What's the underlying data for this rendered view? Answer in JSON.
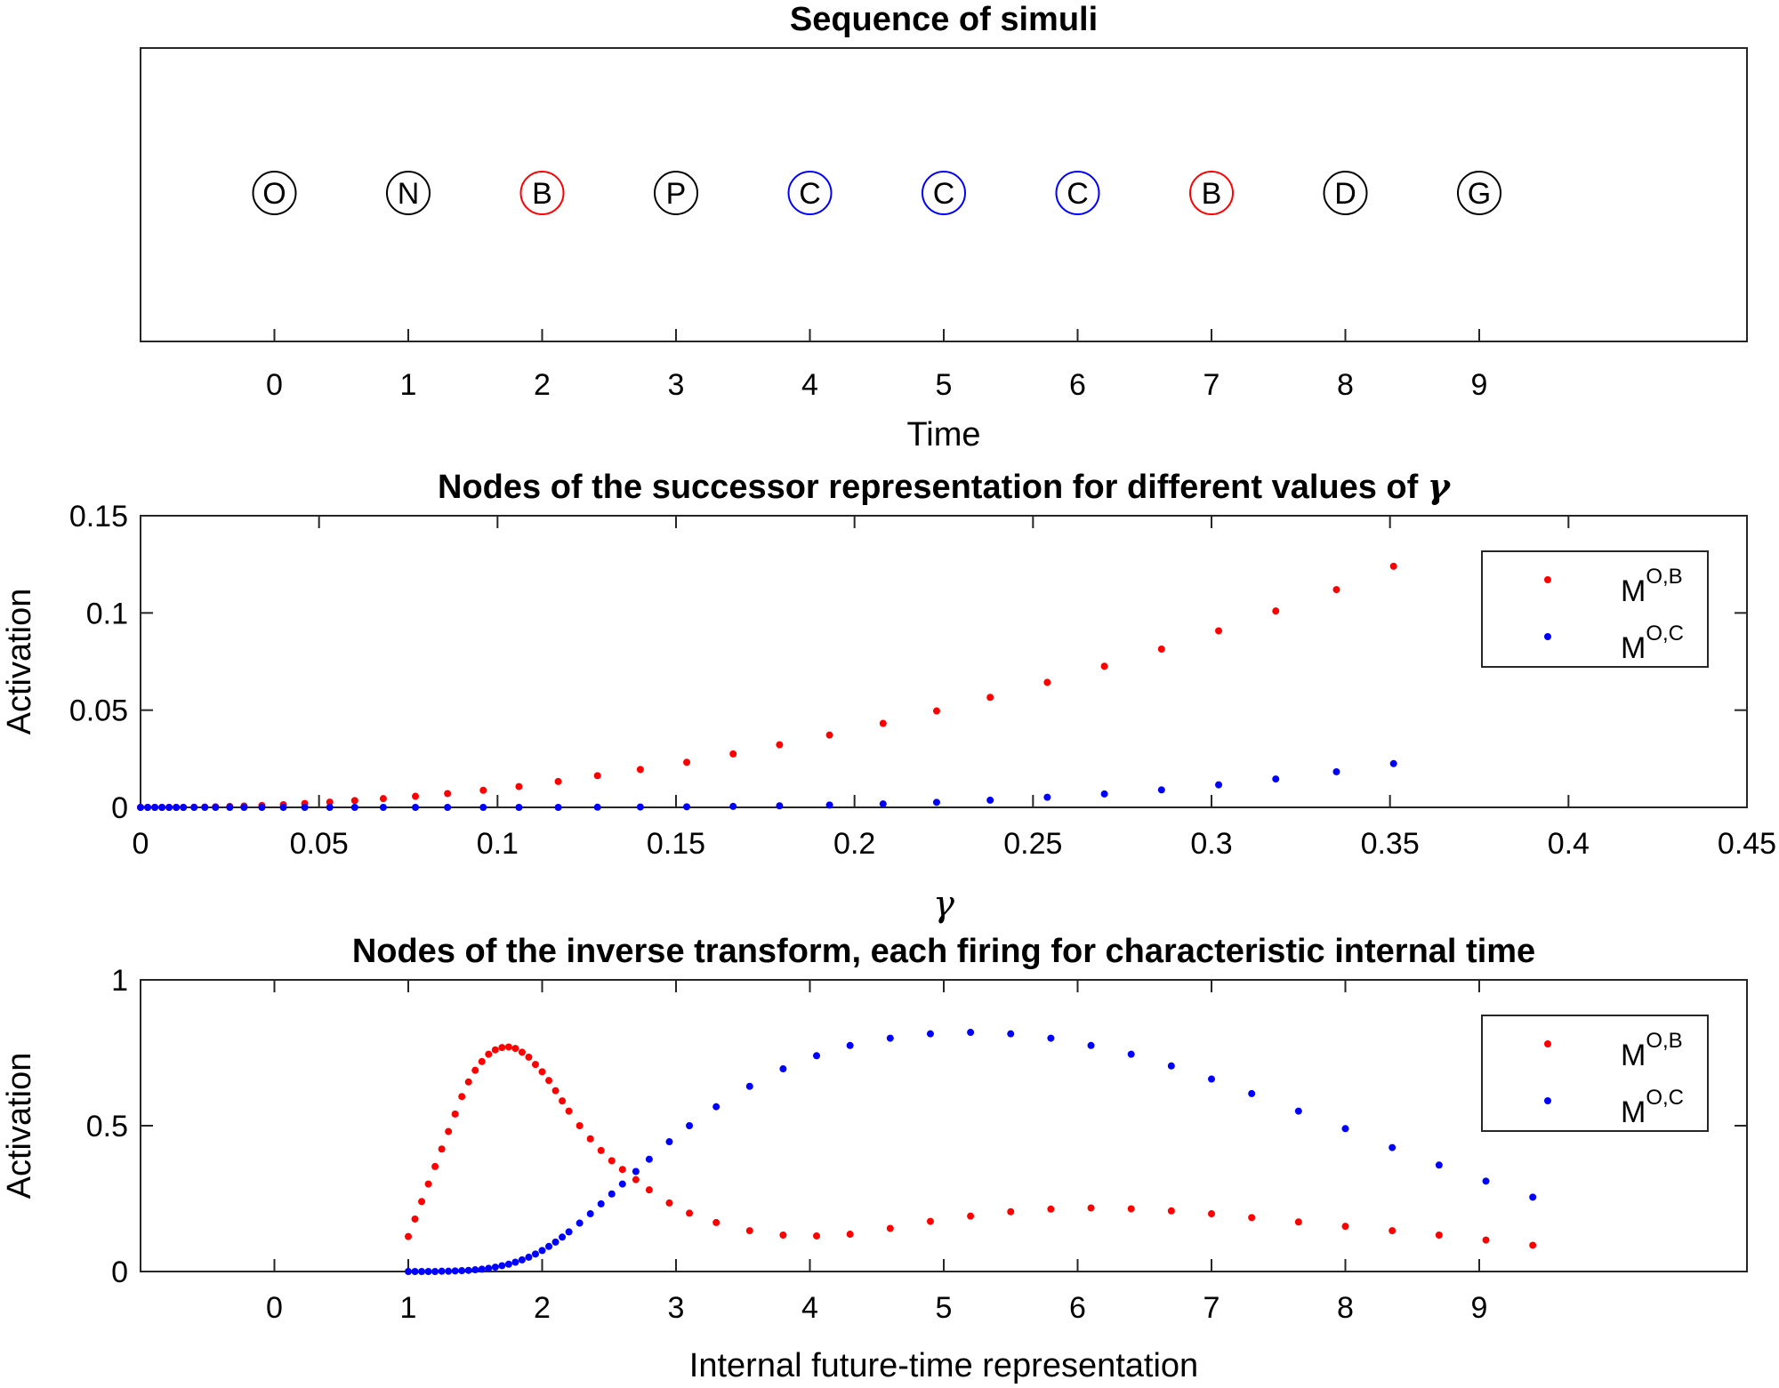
{
  "chart_data": [
    {
      "type": "scatter",
      "title": "Sequence of simuli",
      "xlabel": "Time",
      "ylabel": "",
      "xlim": [
        -1,
        11
      ],
      "xticks": [
        0,
        1,
        2,
        3,
        4,
        5,
        6,
        7,
        8,
        9
      ],
      "y_ticks_shown": false,
      "stimuli": [
        {
          "t": 0,
          "label": "O",
          "color": "#000000"
        },
        {
          "t": 1,
          "label": "N",
          "color": "#000000"
        },
        {
          "t": 2,
          "label": "B",
          "color": "#ff0000"
        },
        {
          "t": 3,
          "label": "P",
          "color": "#000000"
        },
        {
          "t": 4,
          "label": "C",
          "color": "#0000ff"
        },
        {
          "t": 5,
          "label": "C",
          "color": "#0000ff"
        },
        {
          "t": 6,
          "label": "C",
          "color": "#0000ff"
        },
        {
          "t": 7,
          "label": "B",
          "color": "#ff0000"
        },
        {
          "t": 8,
          "label": "D",
          "color": "#000000"
        },
        {
          "t": 9,
          "label": "G",
          "color": "#000000"
        }
      ]
    },
    {
      "type": "scatter",
      "title_prefix": "Nodes of the successor representation for different values of ",
      "title_symbol": "γ",
      "xlabel": "γ",
      "ylabel": "Activation",
      "xlim": [
        0,
        0.45
      ],
      "ylim": [
        0,
        0.15
      ],
      "xticks": [
        0,
        0.05,
        0.1,
        0.15,
        0.2,
        0.25,
        0.3,
        0.35,
        0.4,
        0.45
      ],
      "xtick_labels": [
        "0",
        "0.05",
        "0.1",
        "0.15",
        "0.2",
        "0.25",
        "0.3",
        "0.35",
        "0.4",
        "0.45"
      ],
      "yticks": [
        0,
        0.05,
        0.1,
        0.15
      ],
      "ytick_labels": [
        "0",
        "0.05",
        "0.1",
        "0.15"
      ],
      "legend_position": "top-right",
      "series": [
        {
          "name": "M",
          "sup": "O,B",
          "color": "#ff0000",
          "x": [
            0.0,
            0.002,
            0.004,
            0.006,
            0.008,
            0.01,
            0.012,
            0.015,
            0.018,
            0.021,
            0.025,
            0.029,
            0.034,
            0.04,
            0.046,
            0.053,
            0.06,
            0.068,
            0.077,
            0.086,
            0.096,
            0.106,
            0.117,
            0.128,
            0.14,
            0.153,
            0.166,
            0.179,
            0.193,
            0.208,
            0.223,
            0.238,
            0.254,
            0.27,
            0.286,
            0.302,
            0.318,
            0.335,
            0.351
          ],
          "y": [
            0.0,
            0.0,
            0.0,
            0.0,
            0.0,
            0.0,
            0.0,
            0.0001,
            0.0002,
            0.0003,
            0.0005,
            0.0007,
            0.001,
            0.0014,
            0.002,
            0.0027,
            0.0035,
            0.0045,
            0.0057,
            0.0071,
            0.0088,
            0.0107,
            0.0133,
            0.0163,
            0.0195,
            0.0232,
            0.0275,
            0.0322,
            0.0372,
            0.0432,
            0.0496,
            0.0566,
            0.0643,
            0.0726,
            0.0814,
            0.0908,
            0.101,
            0.112,
            0.124
          ]
        },
        {
          "name": "M",
          "sup": "O,C",
          "color": "#0000ff",
          "x": [
            0.0,
            0.002,
            0.004,
            0.006,
            0.008,
            0.01,
            0.012,
            0.015,
            0.018,
            0.021,
            0.025,
            0.029,
            0.034,
            0.04,
            0.046,
            0.053,
            0.06,
            0.068,
            0.077,
            0.086,
            0.096,
            0.106,
            0.117,
            0.128,
            0.14,
            0.153,
            0.166,
            0.179,
            0.193,
            0.208,
            0.223,
            0.238,
            0.254,
            0.27,
            0.286,
            0.302,
            0.318,
            0.335,
            0.351
          ],
          "y": [
            0.0,
            0.0,
            0.0,
            0.0,
            0.0,
            0.0,
            0.0,
            0.0,
            0.0,
            0.0,
            0.0,
            0.0,
            0.0,
            0.0,
            0.0,
            0.0,
            0.0,
            0.0,
            0.0,
            0.0,
            0.0,
            0.0,
            0.0,
            0.0001,
            0.0002,
            0.0003,
            0.0005,
            0.0008,
            0.0012,
            0.0018,
            0.0026,
            0.0037,
            0.0052,
            0.0069,
            0.009,
            0.0116,
            0.0146,
            0.0183,
            0.0225
          ]
        }
      ]
    },
    {
      "type": "scatter",
      "title": "Nodes of the inverse transform, each firing for characteristic internal time",
      "xlabel": "Internal future-time representation",
      "ylabel": "Activation",
      "xlim": [
        -1,
        11
      ],
      "ylim": [
        0,
        1
      ],
      "xticks": [
        0,
        1,
        2,
        3,
        4,
        5,
        6,
        7,
        8,
        9
      ],
      "yticks": [
        0,
        0.5,
        1
      ],
      "ytick_labels": [
        "0",
        "0.5",
        "1"
      ],
      "legend_position": "top-right",
      "series": [
        {
          "name": "M",
          "sup": "O,B",
          "color": "#ff0000",
          "x": [
            1.0,
            1.05,
            1.1,
            1.15,
            1.2,
            1.25,
            1.3,
            1.35,
            1.4,
            1.45,
            1.5,
            1.55,
            1.6,
            1.65,
            1.7,
            1.75,
            1.8,
            1.85,
            1.9,
            1.95,
            2.0,
            2.05,
            2.1,
            2.15,
            2.2,
            2.28,
            2.36,
            2.44,
            2.52,
            2.6,
            2.7,
            2.8,
            2.95,
            3.1,
            3.3,
            3.55,
            3.8,
            4.05,
            4.3,
            4.6,
            4.9,
            5.2,
            5.5,
            5.8,
            6.1,
            6.4,
            6.7,
            7.0,
            7.3,
            7.65,
            8.0,
            8.35,
            8.7,
            9.05,
            9.4
          ],
          "y": [
            0.12,
            0.18,
            0.24,
            0.3,
            0.36,
            0.42,
            0.48,
            0.54,
            0.6,
            0.65,
            0.69,
            0.72,
            0.745,
            0.76,
            0.768,
            0.77,
            0.765,
            0.752,
            0.735,
            0.71,
            0.685,
            0.655,
            0.62,
            0.585,
            0.55,
            0.5,
            0.455,
            0.415,
            0.38,
            0.35,
            0.315,
            0.28,
            0.235,
            0.2,
            0.168,
            0.14,
            0.125,
            0.122,
            0.128,
            0.148,
            0.172,
            0.19,
            0.205,
            0.214,
            0.218,
            0.215,
            0.208,
            0.198,
            0.185,
            0.17,
            0.155,
            0.14,
            0.125,
            0.108,
            0.09
          ]
        },
        {
          "name": "M",
          "sup": "O,C",
          "color": "#0000ff",
          "x": [
            1.0,
            1.05,
            1.1,
            1.15,
            1.2,
            1.25,
            1.3,
            1.35,
            1.4,
            1.45,
            1.5,
            1.55,
            1.6,
            1.65,
            1.7,
            1.75,
            1.8,
            1.85,
            1.9,
            1.95,
            2.0,
            2.05,
            2.1,
            2.15,
            2.2,
            2.28,
            2.36,
            2.44,
            2.52,
            2.6,
            2.7,
            2.8,
            2.95,
            3.1,
            3.3,
            3.55,
            3.8,
            4.05,
            4.3,
            4.6,
            4.9,
            5.2,
            5.5,
            5.8,
            6.1,
            6.4,
            6.7,
            7.0,
            7.3,
            7.65,
            8.0,
            8.35,
            8.7,
            9.05,
            9.4
          ],
          "y": [
            0.0,
            0.0,
            0.0,
            0.0,
            0.0,
            0.001,
            0.001,
            0.002,
            0.003,
            0.004,
            0.006,
            0.008,
            0.011,
            0.015,
            0.02,
            0.025,
            0.032,
            0.04,
            0.049,
            0.06,
            0.072,
            0.086,
            0.101,
            0.118,
            0.136,
            0.166,
            0.198,
            0.232,
            0.266,
            0.3,
            0.343,
            0.385,
            0.445,
            0.5,
            0.565,
            0.635,
            0.695,
            0.74,
            0.775,
            0.8,
            0.815,
            0.82,
            0.815,
            0.8,
            0.775,
            0.745,
            0.705,
            0.66,
            0.61,
            0.55,
            0.49,
            0.425,
            0.365,
            0.31,
            0.255
          ]
        }
      ]
    }
  ]
}
